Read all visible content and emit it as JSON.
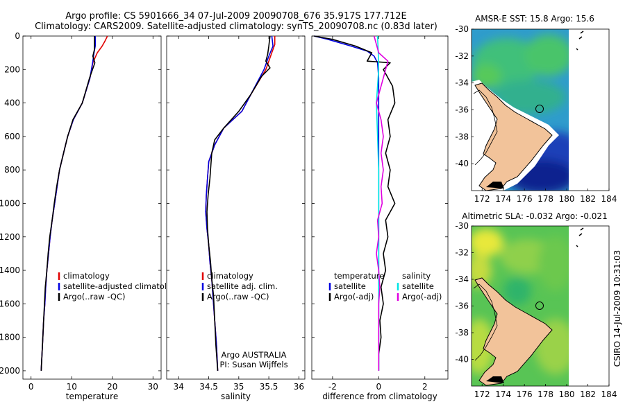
{
  "title_line1": "Argo profile: CS 5901666_34 07-Jul-2009 20090708_676 35.917S 177.712E",
  "title_line2": "Climatology: CARS2009. Satellite-adjusted climatology: synTS_20090708.nc (0.83d later)",
  "credit": "CSIRO 14-Jul-2009 10:31:03",
  "chart_data": [
    {
      "id": "temperature",
      "type": "line",
      "xlabel": "temperature",
      "ylabel": "",
      "xlim": [
        -2,
        32
      ],
      "ylim": [
        2050,
        0
      ],
      "xticks": [
        0,
        10,
        20,
        30
      ],
      "yticks": [
        0,
        200,
        400,
        600,
        800,
        1000,
        1200,
        1400,
        1600,
        1800,
        2000
      ],
      "legend": [
        "climatology",
        "satellite-adjusted climatology",
        "Argo(..raw -QC)"
      ],
      "series": [
        {
          "name": "climatology",
          "color": "#e00000",
          "points": [
            [
              18.8,
              0
            ],
            [
              18.2,
              30
            ],
            [
              17.5,
              60
            ],
            [
              16.3,
              100
            ],
            [
              15.2,
              160
            ],
            [
              14.5,
              250
            ],
            [
              12.6,
              400
            ],
            [
              10.4,
              500
            ],
            [
              9.0,
              600
            ],
            [
              8.0,
              700
            ],
            [
              7.0,
              800
            ],
            [
              6.4,
              900
            ],
            [
              5.8,
              1000
            ],
            [
              5.2,
              1100
            ],
            [
              4.7,
              1200
            ],
            [
              4.3,
              1300
            ],
            [
              3.9,
              1400
            ],
            [
              3.6,
              1500
            ],
            [
              3.4,
              1600
            ],
            [
              3.1,
              1700
            ],
            [
              2.9,
              1800
            ],
            [
              2.7,
              1900
            ],
            [
              2.5,
              2000
            ]
          ]
        },
        {
          "name": "satellite-adjusted climatology",
          "color": "#0000e0",
          "points": [
            [
              15.8,
              0
            ],
            [
              15.8,
              60
            ],
            [
              15.5,
              100
            ],
            [
              15.2,
              150
            ],
            [
              14.5,
              250
            ],
            [
              12.6,
              400
            ],
            [
              10.4,
              500
            ],
            [
              9.0,
              600
            ],
            [
              8.0,
              700
            ],
            [
              7.0,
              800
            ],
            [
              6.4,
              900
            ],
            [
              5.8,
              1000
            ],
            [
              5.2,
              1100
            ],
            [
              4.7,
              1200
            ],
            [
              4.3,
              1300
            ],
            [
              3.9,
              1400
            ],
            [
              3.6,
              1500
            ],
            [
              3.4,
              1600
            ],
            [
              3.1,
              1700
            ],
            [
              2.9,
              1800
            ],
            [
              2.7,
              1900
            ],
            [
              2.5,
              2000
            ]
          ]
        },
        {
          "name": "Argo(..raw -QC)",
          "color": "#000000",
          "points": [
            [
              15.6,
              0
            ],
            [
              15.6,
              80
            ],
            [
              15.2,
              120
            ],
            [
              15.7,
              160
            ],
            [
              14.4,
              250
            ],
            [
              12.6,
              400
            ],
            [
              10.3,
              500
            ],
            [
              9.0,
              600
            ],
            [
              8.0,
              700
            ],
            [
              7.0,
              800
            ],
            [
              6.3,
              900
            ],
            [
              5.7,
              1000
            ],
            [
              5.2,
              1100
            ],
            [
              4.6,
              1200
            ],
            [
              4.2,
              1300
            ],
            [
              3.9,
              1400
            ],
            [
              3.5,
              1500
            ],
            [
              3.3,
              1600
            ],
            [
              3.1,
              1700
            ],
            [
              2.9,
              1800
            ],
            [
              2.7,
              1900
            ],
            [
              2.5,
              2000
            ]
          ]
        }
      ]
    },
    {
      "id": "salinity",
      "type": "line",
      "xlabel": "salinity",
      "ylabel": "",
      "xlim": [
        33.8,
        36.1
      ],
      "ylim": [
        2050,
        0
      ],
      "xticks": [
        34,
        34.5,
        35,
        35.5,
        36
      ],
      "yticks": [
        0,
        200,
        400,
        600,
        800,
        1000,
        1200,
        1400,
        1600,
        1800,
        2000
      ],
      "legend": [
        "climatology",
        "satellite adj. clim.",
        "Argo(..raw -QC)"
      ],
      "annotation": [
        "Argo AUSTRALIA",
        "PI: Susan Wijffels"
      ],
      "series": [
        {
          "name": "climatology",
          "color": "#e00000",
          "points": [
            [
              35.6,
              0
            ],
            [
              35.6,
              50
            ],
            [
              35.55,
              100
            ],
            [
              35.45,
              200
            ],
            [
              35.2,
              350
            ],
            [
              35.05,
              450
            ],
            [
              34.75,
              550
            ],
            [
              34.6,
              650
            ],
            [
              34.5,
              750
            ],
            [
              34.48,
              850
            ],
            [
              34.46,
              950
            ],
            [
              34.45,
              1050
            ],
            [
              34.47,
              1150
            ],
            [
              34.5,
              1250
            ],
            [
              34.52,
              1350
            ],
            [
              34.55,
              1450
            ],
            [
              34.57,
              1550
            ],
            [
              34.6,
              1700
            ],
            [
              34.63,
              1850
            ],
            [
              34.65,
              2000
            ]
          ]
        },
        {
          "name": "satellite adj. clim.",
          "color": "#0000e0",
          "points": [
            [
              35.55,
              0
            ],
            [
              35.57,
              60
            ],
            [
              35.5,
              120
            ],
            [
              35.42,
              200
            ],
            [
              35.2,
              350
            ],
            [
              35.05,
              450
            ],
            [
              34.75,
              550
            ],
            [
              34.6,
              650
            ],
            [
              34.5,
              750
            ],
            [
              34.48,
              850
            ],
            [
              34.46,
              950
            ],
            [
              34.45,
              1050
            ],
            [
              34.47,
              1150
            ],
            [
              34.5,
              1250
            ],
            [
              34.52,
              1350
            ],
            [
              34.55,
              1450
            ],
            [
              34.57,
              1550
            ],
            [
              34.6,
              1700
            ],
            [
              34.63,
              1850
            ],
            [
              34.65,
              2000
            ]
          ]
        },
        {
          "name": "Argo(..raw -QC)",
          "color": "#000000",
          "points": [
            [
              35.52,
              0
            ],
            [
              35.5,
              60
            ],
            [
              35.48,
              110
            ],
            [
              35.45,
              150
            ],
            [
              35.52,
              190
            ],
            [
              35.38,
              240
            ],
            [
              35.2,
              350
            ],
            [
              35.0,
              450
            ],
            [
              34.75,
              550
            ],
            [
              34.6,
              620
            ],
            [
              34.55,
              700
            ],
            [
              34.52,
              850
            ],
            [
              34.49,
              950
            ],
            [
              34.47,
              1050
            ],
            [
              34.48,
              1150
            ],
            [
              34.5,
              1250
            ],
            [
              34.53,
              1350
            ],
            [
              34.55,
              1450
            ],
            [
              34.58,
              1550
            ],
            [
              34.6,
              1700
            ],
            [
              34.62,
              1850
            ],
            [
              34.65,
              2000
            ]
          ]
        }
      ]
    },
    {
      "id": "difference",
      "type": "line",
      "xlabel": "difference from climatology",
      "ylabel": "",
      "xlim": [
        -2.9,
        3.0
      ],
      "ylim": [
        2050,
        0
      ],
      "xticks": [
        -2,
        0,
        2
      ],
      "yticks": [
        0,
        200,
        400,
        600,
        800,
        1000,
        1200,
        1400,
        1600,
        1800,
        2000
      ],
      "legend_groups": [
        {
          "heading": "temperature",
          "items": [
            "satellite",
            "Argo(-adj)"
          ]
        },
        {
          "heading": "salinity",
          "items": [
            "satellite",
            "Argo(-adj)"
          ]
        }
      ],
      "series": [
        {
          "name": "temperature satellite",
          "color": "#0000e0",
          "points": [
            [
              -2.8,
              0
            ],
            [
              -2.2,
              20
            ],
            [
              -1.2,
              60
            ],
            [
              -0.5,
              90
            ],
            [
              -0.2,
              120
            ],
            [
              -0.05,
              160
            ],
            [
              0,
              250
            ],
            [
              0,
              2000
            ]
          ]
        },
        {
          "name": "temperature Argo(-adj)",
          "color": "#000000",
          "points": [
            [
              -2.8,
              0
            ],
            [
              -2.0,
              20
            ],
            [
              -1.0,
              60
            ],
            [
              -0.3,
              100
            ],
            [
              -0.5,
              150
            ],
            [
              0.5,
              160
            ],
            [
              0.2,
              200
            ],
            [
              0.6,
              300
            ],
            [
              0.7,
              400
            ],
            [
              0.4,
              500
            ],
            [
              0.5,
              600
            ],
            [
              0.3,
              700
            ],
            [
              0.5,
              800
            ],
            [
              0.4,
              900
            ],
            [
              0.7,
              1000
            ],
            [
              0.3,
              1100
            ],
            [
              0.4,
              1200
            ],
            [
              0.2,
              1300
            ],
            [
              0.3,
              1400
            ],
            [
              0.1,
              1500
            ],
            [
              0.2,
              1600
            ],
            [
              0.05,
              1700
            ],
            [
              0.1,
              1800
            ],
            [
              0,
              1900
            ],
            [
              0,
              2000
            ]
          ]
        },
        {
          "name": "salinity satellite",
          "color": "#00e5e5",
          "points": [
            [
              -0.05,
              0
            ],
            [
              -0.02,
              100
            ],
            [
              0,
              200
            ],
            [
              -0.1,
              400
            ],
            [
              -0.05,
              600
            ],
            [
              0,
              800
            ],
            [
              0,
              2000
            ]
          ]
        },
        {
          "name": "salinity Argo(-adj)",
          "color": "#e000e0",
          "points": [
            [
              -0.2,
              0
            ],
            [
              -0.1,
              50
            ],
            [
              0,
              100
            ],
            [
              0.4,
              150
            ],
            [
              0.3,
              200
            ],
            [
              0.1,
              300
            ],
            [
              -0.1,
              400
            ],
            [
              0.1,
              500
            ],
            [
              0.2,
              600
            ],
            [
              0.1,
              700
            ],
            [
              0.2,
              800
            ],
            [
              0.1,
              900
            ],
            [
              0.15,
              1000
            ],
            [
              -0.05,
              1100
            ],
            [
              0,
              1200
            ],
            [
              -0.1,
              1300
            ],
            [
              0,
              1400
            ],
            [
              0.05,
              1500
            ],
            [
              0,
              1600
            ],
            [
              0,
              1700
            ],
            [
              0,
              1800
            ],
            [
              0,
              1900
            ],
            [
              0,
              2000
            ]
          ]
        }
      ]
    },
    {
      "id": "sst_map",
      "type": "heatmap",
      "title": "AMSR-E SST: 15.8  Argo: 15.6",
      "xlim": [
        171,
        184
      ],
      "ylim": [
        -42,
        -30
      ],
      "xticks": [
        172,
        174,
        176,
        178,
        180,
        182,
        184
      ],
      "yticks": [
        -30,
        -32,
        -34,
        -36,
        -38,
        -40
      ],
      "float_position": [
        177.712,
        -35.917
      ]
    },
    {
      "id": "sla_map",
      "type": "heatmap",
      "title": "Altimetric SLA: -0.032  Argo: -0.021",
      "xlim": [
        171,
        184
      ],
      "ylim": [
        -42,
        -30
      ],
      "xticks": [
        172,
        174,
        176,
        178,
        180,
        182,
        184
      ],
      "yticks": [
        -30,
        -32,
        -34,
        -36,
        -38,
        -40
      ],
      "float_position": [
        177.712,
        -35.917
      ]
    }
  ]
}
